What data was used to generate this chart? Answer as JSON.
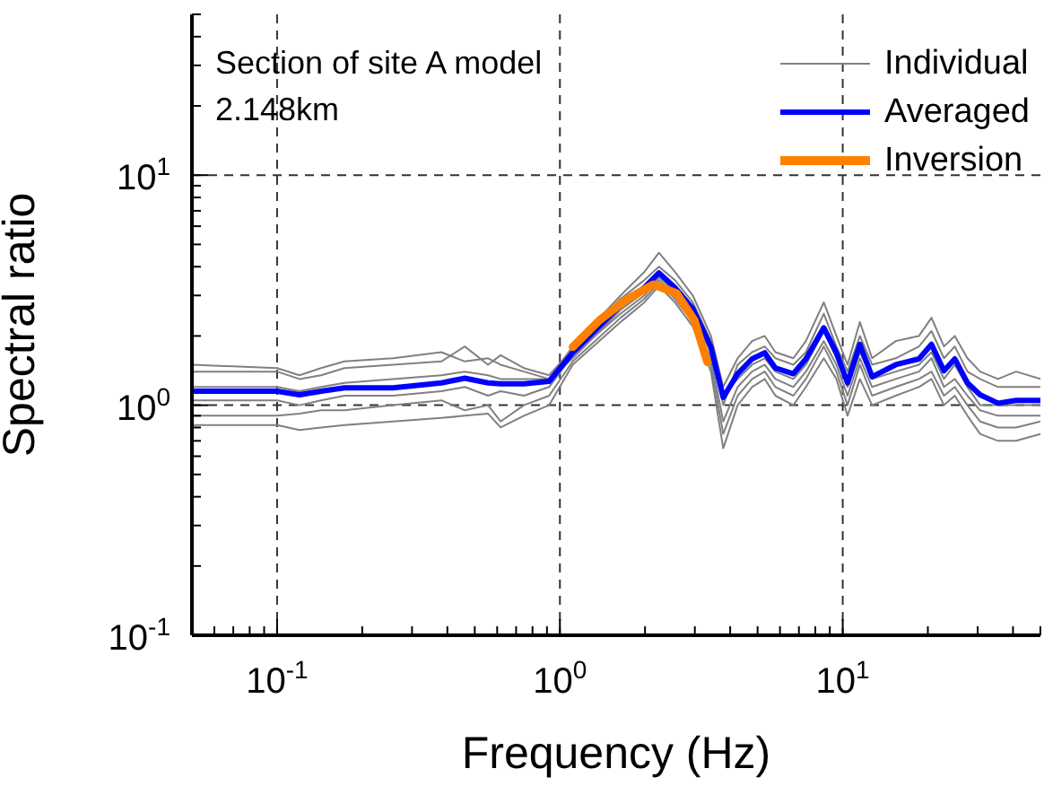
{
  "chart_data": {
    "type": "line",
    "xlabel": "Frequency (Hz)",
    "ylabel": "Spectral ratio",
    "annotations": [
      "Section of site A model",
      "2.148km"
    ],
    "log": "xy",
    "grid": true,
    "legend": "top right",
    "marker": "none",
    "line_style": "solid",
    "xlim": [
      0.05,
      50
    ],
    "ylim": [
      0.1,
      50
    ],
    "xticks": [
      {
        "value": 0.05,
        "label": null
      },
      {
        "value": 0.06,
        "label": null
      },
      {
        "value": 0.07,
        "label": null
      },
      {
        "value": 0.08,
        "label": null
      },
      {
        "value": 0.09,
        "label": null
      },
      {
        "value": 0.1,
        "label": "10$^{-1}$"
      },
      {
        "value": 0.2,
        "label": null
      },
      {
        "value": 0.3,
        "label": null
      },
      {
        "value": 0.4,
        "label": null
      },
      {
        "value": 0.5,
        "label": null
      },
      {
        "value": 0.6,
        "label": null
      },
      {
        "value": 0.7,
        "label": null
      },
      {
        "value": 0.8,
        "label": null
      },
      {
        "value": 0.9,
        "label": null
      },
      {
        "value": 1,
        "label": "10$^{0}$"
      },
      {
        "value": 2,
        "label": null
      },
      {
        "value": 3,
        "label": null
      },
      {
        "value": 4,
        "label": null
      },
      {
        "value": 5,
        "label": null
      },
      {
        "value": 6,
        "label": null
      },
      {
        "value": 7,
        "label": null
      },
      {
        "value": 8,
        "label": null
      },
      {
        "value": 9,
        "label": null
      },
      {
        "value": 10,
        "label": "10$^{1}$"
      },
      {
        "value": 20,
        "label": null
      },
      {
        "value": 30,
        "label": null
      },
      {
        "value": 40,
        "label": null
      },
      {
        "value": 50,
        "label": null
      }
    ],
    "yticks": [
      {
        "value": 0.1,
        "label": "10$^{-1}$"
      },
      {
        "value": 0.2,
        "label": null
      },
      {
        "value": 0.3,
        "label": null
      },
      {
        "value": 0.4,
        "label": null
      },
      {
        "value": 0.5,
        "label": null
      },
      {
        "value": 0.6,
        "label": null
      },
      {
        "value": 0.7,
        "label": null
      },
      {
        "value": 0.8,
        "label": null
      },
      {
        "value": 0.9,
        "label": null
      },
      {
        "value": 1,
        "label": "10$^{0}$"
      },
      {
        "value": 2,
        "label": null
      },
      {
        "value": 3,
        "label": null
      },
      {
        "value": 4,
        "label": null
      },
      {
        "value": 5,
        "label": null
      },
      {
        "value": 6,
        "label": null
      },
      {
        "value": 7,
        "label": null
      },
      {
        "value": 8,
        "label": null
      },
      {
        "value": 9,
        "label": null
      },
      {
        "value": 10,
        "label": "10$^{1}$"
      },
      {
        "value": 20,
        "label": null
      },
      {
        "value": 30,
        "label": null
      },
      {
        "value": 40,
        "label": null
      },
      {
        "value": 50,
        "label": null
      }
    ],
    "x": [
      0.05,
      0.1,
      0.12,
      0.143,
      0.173,
      0.257,
      0.381,
      0.461,
      0.557,
      0.617,
      0.746,
      0.916,
      1.11,
      1.64,
      1.99,
      2.24,
      2.55,
      2.95,
      3.42,
      3.78,
      4.25,
      4.78,
      5.3,
      5.78,
      6.69,
      7.41,
      8.57,
      9.5,
      10.4,
      11.5,
      12.7,
      15.4,
      18.6,
      20.6,
      22.8,
      24.9,
      27.6,
      30.6,
      35.4,
      41,
      50
    ],
    "series": [
      {
        "name": "Individual",
        "color": "#808080",
        "values": [
          1.5,
          1.45,
          1.35,
          1.45,
          1.55,
          1.6,
          1.7,
          1.55,
          1.6,
          1.5,
          1.4,
          1.3,
          1.8,
          3.0,
          3.8,
          4.6,
          3.8,
          3.0,
          2.0,
          1.2,
          1.6,
          1.9,
          2.0,
          1.7,
          1.6,
          1.9,
          2.8,
          2.0,
          1.5,
          2.3,
          1.6,
          1.9,
          2.0,
          2.4,
          1.8,
          2.0,
          1.6,
          1.4,
          1.3,
          1.4,
          1.3
        ]
      },
      {
        "color": "#808080",
        "values": [
          1.4,
          1.4,
          1.3,
          1.35,
          1.45,
          1.5,
          1.55,
          1.8,
          1.5,
          1.65,
          1.45,
          1.35,
          1.75,
          2.9,
          3.5,
          4.0,
          3.5,
          2.8,
          1.9,
          1.0,
          1.5,
          1.7,
          1.8,
          1.6,
          1.5,
          1.7,
          2.5,
          1.8,
          1.4,
          2.0,
          1.5,
          1.6,
          1.8,
          2.1,
          1.6,
          1.8,
          1.4,
          1.3,
          1.2,
          1.2,
          1.2
        ]
      },
      {
        "color": "#808080",
        "values": [
          1.2,
          1.2,
          1.15,
          1.2,
          1.25,
          1.3,
          1.35,
          1.4,
          1.35,
          1.3,
          1.3,
          1.3,
          1.6,
          2.6,
          3.1,
          3.6,
          3.1,
          2.5,
          1.7,
          1.1,
          1.3,
          1.5,
          1.6,
          1.4,
          1.3,
          1.5,
          2.1,
          1.6,
          1.2,
          1.7,
          1.3,
          1.4,
          1.5,
          1.7,
          1.3,
          1.5,
          1.2,
          1.0,
          1.0,
          1.0,
          1.0
        ]
      },
      {
        "color": "#808080",
        "values": [
          1.05,
          1.05,
          1.0,
          1.05,
          1.1,
          1.1,
          1.15,
          1.2,
          1.1,
          1.15,
          1.1,
          1.2,
          1.65,
          2.5,
          3.0,
          3.5,
          3.0,
          2.4,
          1.6,
          0.85,
          1.2,
          1.4,
          1.5,
          1.3,
          1.2,
          1.4,
          1.9,
          1.5,
          1.1,
          1.6,
          1.2,
          1.3,
          1.4,
          1.6,
          1.2,
          1.3,
          1.1,
          0.95,
          0.9,
          0.9,
          0.9
        ]
      },
      {
        "color": "#808080",
        "values": [
          0.9,
          0.9,
          0.92,
          0.95,
          0.95,
          1.0,
          1.05,
          0.95,
          1.0,
          0.85,
          1.0,
          1.1,
          1.55,
          2.4,
          2.9,
          3.4,
          2.9,
          2.3,
          1.5,
          0.75,
          1.1,
          1.3,
          1.4,
          1.2,
          1.1,
          1.3,
          1.8,
          1.4,
          1.0,
          1.5,
          1.1,
          1.2,
          1.3,
          1.4,
          1.1,
          1.2,
          1.0,
          0.85,
          0.8,
          0.8,
          0.85
        ]
      },
      {
        "color": "#808080",
        "values": [
          0.82,
          0.82,
          0.78,
          0.8,
          0.82,
          0.85,
          0.88,
          0.9,
          0.92,
          0.8,
          0.9,
          1.0,
          1.5,
          2.3,
          2.8,
          3.3,
          2.8,
          2.2,
          1.4,
          0.65,
          1.0,
          1.2,
          1.3,
          1.1,
          1.0,
          1.2,
          1.6,
          1.3,
          0.9,
          1.3,
          1.0,
          1.1,
          1.2,
          1.3,
          1.0,
          1.1,
          0.9,
          0.75,
          0.7,
          0.7,
          0.75
        ]
      },
      {
        "name": "Averaged",
        "color": "#0000ff",
        "values": [
          1.15,
          1.15,
          1.11,
          1.15,
          1.19,
          1.19,
          1.25,
          1.31,
          1.25,
          1.24,
          1.24,
          1.27,
          1.69,
          2.72,
          3.25,
          3.76,
          3.25,
          2.63,
          1.79,
          1.08,
          1.37,
          1.59,
          1.69,
          1.45,
          1.37,
          1.59,
          2.17,
          1.69,
          1.25,
          1.84,
          1.33,
          1.5,
          1.59,
          1.84,
          1.41,
          1.59,
          1.25,
          1.11,
          1.02,
          1.05,
          1.05
        ]
      },
      {
        "name": "Inversion",
        "color": "#ff8000",
        "x": [
          1.11,
          1.38,
          1.72,
          2.14,
          2.59,
          2.99,
          3.32
        ],
        "values": [
          1.79,
          2.34,
          2.88,
          3.35,
          3.06,
          2.34,
          1.54
        ]
      }
    ]
  }
}
